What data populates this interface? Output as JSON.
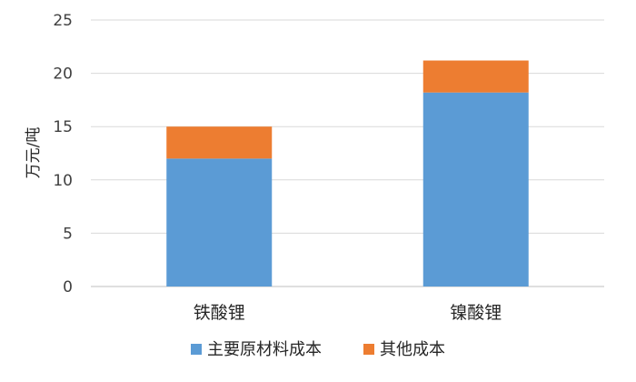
{
  "chart_data": {
    "type": "bar",
    "stacked": true,
    "title": "",
    "xlabel": "",
    "ylabel": "万元/吨",
    "ylim": [
      0,
      25
    ],
    "yticks": [
      0,
      5,
      10,
      15,
      20,
      25
    ],
    "categories": [
      "铁酸锂",
      "镍酸锂"
    ],
    "series": [
      {
        "name": "主要原材料成本",
        "values": [
          12.0,
          18.2
        ],
        "color": "#5B9BD5"
      },
      {
        "name": "其他成本",
        "values": [
          3.0,
          3.0
        ],
        "color": "#ED7D31"
      }
    ],
    "grid": true,
    "legend_position": "bottom"
  }
}
